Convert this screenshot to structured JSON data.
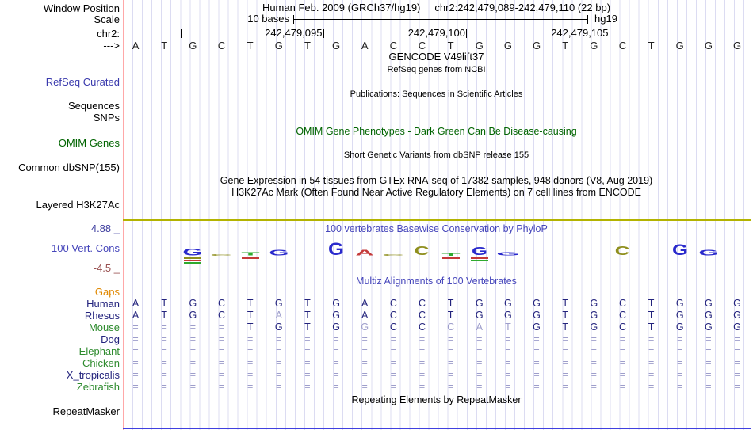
{
  "header": {
    "window_position_label": "Window Position",
    "assembly_title": "Human Feb. 2009 (GRCh37/hg19)",
    "position_title": "chr2:242,479,089-242,479,110 (22 bp)",
    "scale_label": "Scale",
    "scale_value": "10 bases",
    "assembly_short": "hg19",
    "chrom_label": "chr2:",
    "coordinate_labels": [
      "242,479,095",
      "242,479,100",
      "242,479,105"
    ],
    "strand_arrow": "--->"
  },
  "sequence": {
    "bases": [
      "A",
      "T",
      "G",
      "C",
      "T",
      "G",
      "T",
      "G",
      "A",
      "C",
      "C",
      "T",
      "G",
      "G",
      "G",
      "T",
      "G",
      "C",
      "T",
      "G",
      "G",
      "G"
    ]
  },
  "tracks": {
    "gencode_title": "GENCODE V49lift37",
    "gencode_subtitle": "RefSeq genes from NCBI",
    "refseq_label": "RefSeq Curated",
    "publications_title": "Publications: Sequences in Scientific Articles",
    "sequences_label": "Sequences",
    "snps_label": "SNPs",
    "omim_title": "OMIM Gene Phenotypes - Dark Green Can Be Disease-causing",
    "omim_label": "OMIM Genes",
    "dbsnp_title": "Short Genetic Variants from dbSNP release 155",
    "dbsnp_label": "Common dbSNP(155)",
    "gtex_title": "Gene Expression in 54 tissues from GTEx RNA-seq of 17382 samples, 948 donors (V8, Aug 2019)",
    "h3k27ac_title": "H3K27Ac Mark (Often Found Near Active Regulatory Elements) on 7 cell lines from ENCODE",
    "h3k27ac_label": "Layered H3K27Ac",
    "repeat_title": "Repeating Elements by RepeatMasker",
    "repeat_label": "RepeatMasker"
  },
  "conservation": {
    "label": "100 Vert. Cons",
    "title": "100 vertebrates Basewise Conservation by PhyloP",
    "scale_max": "4.88 _",
    "scale_min": "-4.5 _",
    "colors": {
      "blue": "#2a2acc",
      "red": "#c53a3a",
      "olive": "#8f8f1e",
      "green": "#2faa2f"
    },
    "glyphs": [
      {
        "col": 3,
        "letter": "G",
        "color": "blue",
        "h": 8,
        "sub": [
          "olive",
          "red",
          "green"
        ]
      },
      {
        "col": 4,
        "letter": "C",
        "color": "olive",
        "h": 2
      },
      {
        "col": 5,
        "letter": "T",
        "color": "green",
        "h": 4,
        "sub": [
          "red"
        ]
      },
      {
        "col": 6,
        "letter": "G",
        "color": "blue",
        "h": 7
      },
      {
        "col": 8,
        "letter": "G",
        "color": "blue",
        "h": 15
      },
      {
        "col": 9,
        "letter": "A",
        "color": "red",
        "h": 7
      },
      {
        "col": 10,
        "letter": "C",
        "color": "olive",
        "h": 2
      },
      {
        "col": 11,
        "letter": "C",
        "color": "olive",
        "h": 11
      },
      {
        "col": 12,
        "letter": "T",
        "color": "green",
        "h": 3,
        "sub": [
          "red"
        ]
      },
      {
        "col": 13,
        "letter": "G",
        "color": "blue",
        "h": 10,
        "sub": [
          "red",
          "green"
        ]
      },
      {
        "col": 14,
        "letter": "G",
        "color": "blue",
        "h": 4
      },
      {
        "col": 18,
        "letter": "C",
        "color": "olive",
        "h": 11
      },
      {
        "col": 20,
        "letter": "G",
        "color": "blue",
        "h": 13
      },
      {
        "col": 21,
        "letter": "G",
        "color": "blue",
        "h": 7
      }
    ]
  },
  "alignment": {
    "title": "Multiz Alignments of 100 Vertebrates",
    "species": [
      {
        "name": "Gaps",
        "label_color": "#e08800",
        "cells": []
      },
      {
        "name": "Human",
        "label_color": "#23237d",
        "cells": [
          "A",
          "T",
          "G",
          "C",
          "T",
          "G",
          "T",
          "G",
          "A",
          "C",
          "C",
          "T",
          "G",
          "G",
          "G",
          "T",
          "G",
          "C",
          "T",
          "G",
          "G",
          "G"
        ]
      },
      {
        "name": "Rhesus",
        "label_color": "#23237d",
        "cells": [
          "A",
          "T",
          "G",
          "C",
          "T",
          "a",
          "T",
          "G",
          "A",
          "C",
          "C",
          "T",
          "G",
          "G",
          "G",
          "T",
          "G",
          "C",
          "T",
          "G",
          "G",
          "G"
        ]
      },
      {
        "name": "Mouse",
        "label_color": "#2e8b2e",
        "cells": [
          "=",
          "=",
          "=",
          "=",
          "T",
          "G",
          "T",
          "G",
          "g",
          "C",
          "C",
          "c",
          "a",
          "t",
          "G",
          "T",
          "G",
          "C",
          "T",
          "G",
          "G",
          "G"
        ]
      },
      {
        "name": "Dog",
        "label_color": "#23237d",
        "cells": [
          "=",
          "=",
          "=",
          "=",
          "=",
          "=",
          "=",
          "=",
          "=",
          "=",
          "=",
          "=",
          "=",
          "=",
          "=",
          "=",
          "=",
          "=",
          "=",
          "=",
          "=",
          "="
        ]
      },
      {
        "name": "Elephant",
        "label_color": "#2e8b2e",
        "cells": [
          "=",
          "=",
          "=",
          "=",
          "=",
          "=",
          "=",
          "=",
          "=",
          "=",
          "=",
          "=",
          "=",
          "=",
          "=",
          "=",
          "=",
          "=",
          "=",
          "=",
          "=",
          "="
        ]
      },
      {
        "name": "Chicken",
        "label_color": "#2e8b2e",
        "cells": [
          "=",
          "=",
          "=",
          "=",
          "=",
          "=",
          "=",
          "=",
          "=",
          "=",
          "=",
          "=",
          "=",
          "=",
          "=",
          "=",
          "=",
          "=",
          "=",
          "=",
          "=",
          "="
        ]
      },
      {
        "name": "X_tropicalis",
        "label_color": "#23237d",
        "cells": [
          "=",
          "=",
          "=",
          "=",
          "=",
          "=",
          "=",
          "=",
          "=",
          "=",
          "=",
          "=",
          "=",
          "=",
          "=",
          "=",
          "=",
          "=",
          "=",
          "=",
          "=",
          "="
        ]
      },
      {
        "name": "Zebrafish",
        "label_color": "#2e8b2e",
        "cells": [
          "=",
          "=",
          "=",
          "=",
          "=",
          "=",
          "=",
          "=",
          "=",
          "=",
          "=",
          "=",
          "=",
          "=",
          "=",
          "=",
          "=",
          "=",
          "=",
          "=",
          "=",
          "="
        ]
      }
    ]
  }
}
